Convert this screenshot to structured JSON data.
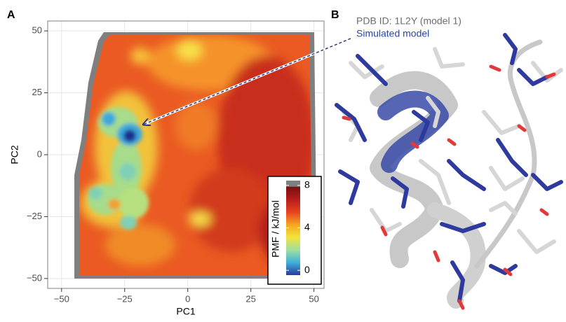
{
  "chart_data": {
    "type": "heatmap",
    "panel_a": "A",
    "panel_b": "B",
    "x_label": "PC1",
    "y_label": "PC2",
    "xlim": [
      -55.5,
      54
    ],
    "ylim": [
      -54,
      54
    ],
    "xticks": [
      {
        "value": -50,
        "label": "−50"
      },
      {
        "value": -25,
        "label": "−25"
      },
      0,
      25,
      50
    ],
    "yticks": [
      {
        "value": -50,
        "label": "−50"
      },
      {
        "value": -25,
        "label": "−25"
      },
      0,
      25,
      50
    ],
    "grid": true,
    "colorbar": {
      "label": "PMF / kJ/mol",
      "lim": [
        -0.45,
        8.45
      ],
      "ticks": [
        0,
        4,
        8
      ],
      "colors": [
        "#2b3a97",
        "#3fb0dc",
        "#9ee0a0",
        "#f3e33a",
        "#f6a623",
        "#e8441f",
        "#b71d1d",
        "#7a0f12"
      ]
    },
    "annotations": [
      "PDB ID: 1L2Y (model 1)",
      "Simulated model"
    ]
  }
}
